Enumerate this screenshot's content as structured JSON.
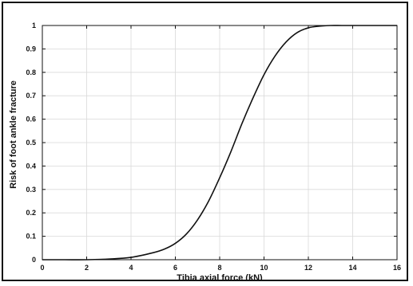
{
  "chart_data": {
    "type": "line",
    "title": "",
    "xlabel": "Tibia axial force (kN)",
    "ylabel": "Risk of foot ankle fracture",
    "xlim": [
      0,
      16
    ],
    "ylim": [
      0,
      1
    ],
    "xticks": [
      0,
      2,
      4,
      6,
      8,
      10,
      12,
      14,
      16
    ],
    "yticks": [
      0,
      0.1,
      0.2,
      0.3,
      0.4,
      0.5,
      0.6,
      0.7,
      0.8,
      0.9,
      1
    ],
    "grid": true,
    "legend": "none",
    "series": [
      {
        "x": [
          0,
          1,
          2,
          3,
          4,
          5,
          5.5,
          6,
          6.5,
          7,
          7.5,
          8,
          8.5,
          9,
          9.5,
          10,
          10.5,
          11,
          11.5,
          12,
          12.5,
          13,
          13.5,
          14,
          15,
          16
        ],
        "y": [
          0.0,
          0.0,
          0.0,
          0.003,
          0.01,
          0.03,
          0.045,
          0.07,
          0.11,
          0.17,
          0.25,
          0.35,
          0.46,
          0.58,
          0.69,
          0.79,
          0.87,
          0.93,
          0.97,
          0.99,
          0.997,
          1.0,
          1.0,
          1.0,
          1.0,
          1.0
        ]
      }
    ],
    "colors": {
      "line": "#111111",
      "grid": "#d9d9d9",
      "axis": "#111111"
    }
  }
}
